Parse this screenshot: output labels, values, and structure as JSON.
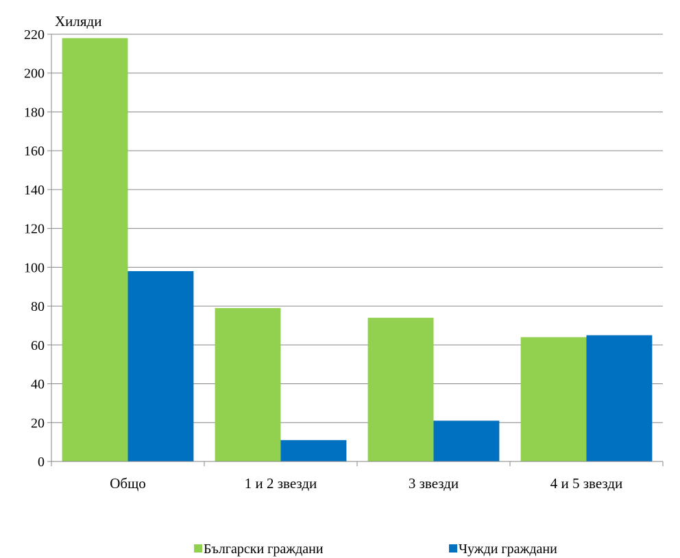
{
  "chart_data": {
    "type": "bar",
    "unit_label": "Хиляди",
    "categories": [
      "Общо",
      "1 и 2 звезди",
      "3 звезди",
      "4 и 5 звезди"
    ],
    "series": [
      {
        "name": "Български граждани",
        "color": "#92D050",
        "values": [
          218,
          79,
          74,
          64
        ]
      },
      {
        "name": "Чужди граждани",
        "color": "#0070C0",
        "values": [
          98,
          11,
          21,
          65
        ]
      }
    ],
    "ylim": [
      0,
      220
    ],
    "yticks": [
      "0",
      "20",
      "40",
      "60",
      "80",
      "100",
      "120",
      "140",
      "160",
      "180",
      "200",
      "220"
    ],
    "grid": true,
    "legend_position": "bottom"
  }
}
